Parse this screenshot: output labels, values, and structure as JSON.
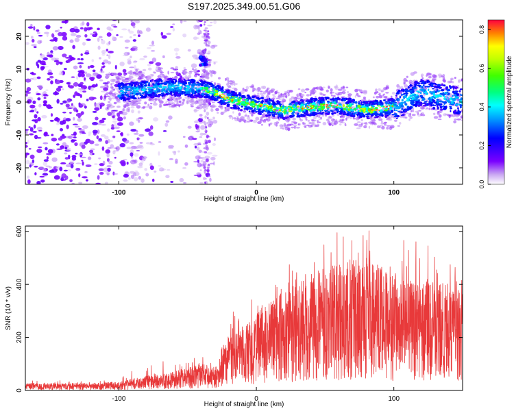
{
  "title": "S197.2025.349.00.51.G06",
  "chart_data": [
    {
      "type": "heatmap",
      "xlabel": "Height of straight line (km)",
      "ylabel": "Frequency (Hz)",
      "xlim": [
        -168,
        150
      ],
      "ylim": [
        -25,
        25
      ],
      "xticks": [
        -100,
        0,
        100
      ],
      "xtick_labels": [
        "-100",
        "0",
        "100"
      ],
      "yticks": [
        -20,
        -10,
        0,
        10,
        20
      ],
      "ytick_labels": [
        "-20",
        "-10",
        "0",
        "10",
        "20"
      ],
      "colorbar": {
        "label": "Normalized spectral amplitude",
        "range": [
          0.0,
          0.85
        ],
        "ticks": [
          0.0,
          0.2,
          0.4,
          0.6,
          0.8
        ],
        "tick_labels": [
          "0.0",
          "0.2",
          "0.4",
          "0.6",
          "0.8"
        ]
      },
      "ridge": {
        "description_points_x": [
          -100,
          -80,
          -60,
          -40,
          -30,
          -20,
          0,
          20,
          40,
          60,
          80,
          100,
          120,
          140,
          150
        ],
        "frequency_hz": [
          3,
          4,
          4.5,
          4,
          3,
          1,
          -1,
          -2.5,
          -1.5,
          -1,
          -2.5,
          -1.5,
          3,
          1,
          0
        ]
      }
    },
    {
      "type": "line",
      "xlabel": "Height of straight line (km)",
      "ylabel": "SNR (10 * v/v)",
      "xlim": [
        -168,
        150
      ],
      "ylim": [
        0,
        620
      ],
      "xticks": [
        -100,
        0,
        100
      ],
      "xtick_labels": [
        "-100",
        "0",
        "100"
      ],
      "yticks": [
        0,
        200,
        400,
        600
      ],
      "ytick_labels": [
        "0",
        "200",
        "400",
        "600"
      ],
      "color": "#e8393a",
      "envelope": {
        "x": [
          -168,
          -120,
          -100,
          -80,
          -60,
          -40,
          -28,
          -25,
          -10,
          0,
          20,
          40,
          60,
          80,
          100,
          120,
          150
        ],
        "typical": [
          15,
          15,
          18,
          30,
          40,
          55,
          45,
          90,
          130,
          160,
          200,
          240,
          260,
          270,
          240,
          230,
          210
        ],
        "peak": [
          40,
          35,
          45,
          125,
          110,
          130,
          95,
          280,
          330,
          380,
          480,
          540,
          620,
          620,
          560,
          580,
          440
        ]
      }
    }
  ]
}
